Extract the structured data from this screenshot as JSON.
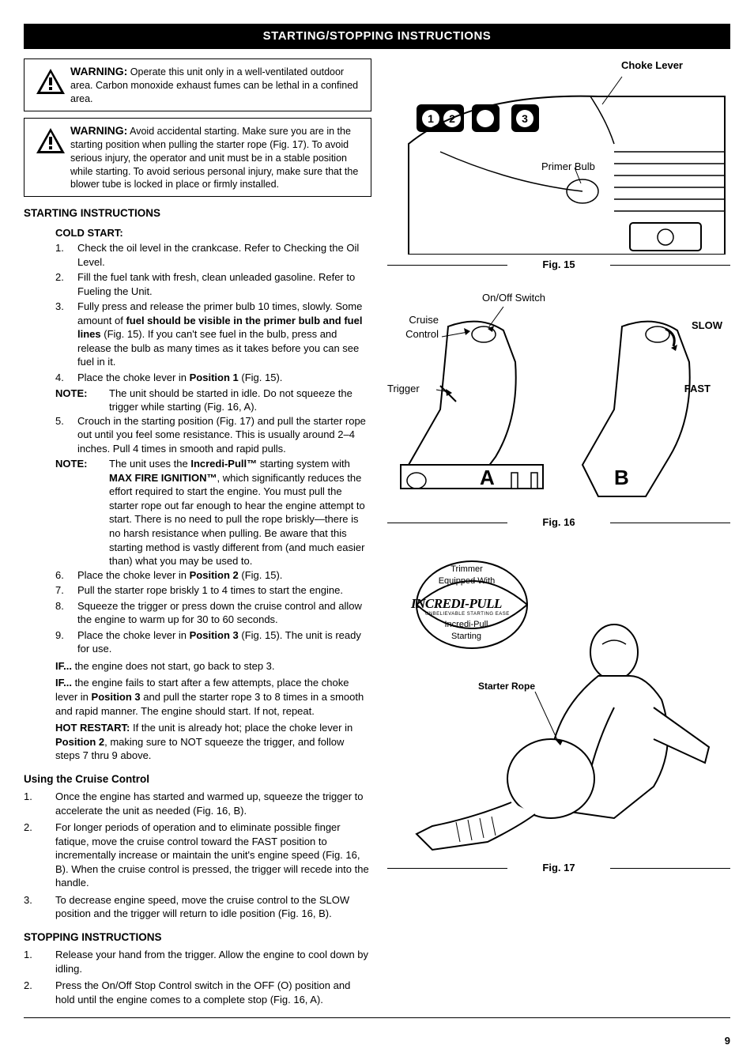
{
  "title_bar": "STARTING/STOPPING INSTRUCTIONS",
  "warnings": [
    {
      "label": "WARNING:",
      "text": " Operate this unit only in a well-ventilated outdoor area. Carbon monoxide exhaust fumes can be lethal in a confined area."
    },
    {
      "label": "WARNING:",
      "text": " Avoid accidental starting. Make sure you are in the starting position when pulling the starter rope (Fig. 17). To avoid serious injury, the operator and unit must be in a stable position while starting. To avoid serious personal injury, make sure that the blower tube is locked in place or firmly installed."
    }
  ],
  "starting_heading": "STARTING INSTRUCTIONS",
  "cold_start_heading": "COLD START:",
  "cold_start_steps": [
    {
      "n": "1.",
      "t": "Check the oil level in the crankcase.  Refer to Checking the Oil Level."
    },
    {
      "n": "2.",
      "t": "Fill the fuel tank with fresh, clean unleaded gasoline. Refer to Fueling the Unit."
    },
    {
      "n": "3.",
      "t": "Fully press and release the primer bulb 10 times, slowly. Some amount of <b>fuel should be visible in the primer bulb and fuel lines</b> (Fig. 15). If you can't see fuel in the bulb, press and release the bulb as many times as it takes before you can see fuel in it."
    },
    {
      "n": "4.",
      "t": "Place the choke lever in <b>Position 1</b> (Fig. 15)."
    }
  ],
  "note1_label": "NOTE:",
  "note1_text": "The unit should be started in idle.  Do not squeeze the trigger while starting (Fig. 16, A).",
  "step5": {
    "n": "5.",
    "t": "Crouch in the starting position (Fig. 17) and pull the starter rope out until you feel some resistance.  This is usually around 2–4 inches.  Pull 4 times in smooth and rapid pulls."
  },
  "note2_label": "NOTE:",
  "note2_text": "The unit uses the <b>Incredi-Pull™</b> starting system  with <b>MAX FIRE IGNITION™</b>, which significantly reduces the effort required to start the engine. You must pull the starter rope out far enough to hear the engine attempt to start. There is no need to pull the rope briskly—there is no harsh resistance when pulling. Be aware that this starting method is vastly different from (and much easier than) what you may be used to.",
  "cold_start_rest": [
    {
      "n": "6.",
      "t": "Place the choke lever in <b>Position 2</b> (Fig. 15)."
    },
    {
      "n": "7.",
      "t": "Pull the starter rope briskly 1 to 4 times to start the engine."
    },
    {
      "n": "8.",
      "t": "Squeeze the trigger or press down the cruise control and allow the engine to warm up for 30 to 60 seconds."
    },
    {
      "n": "9.",
      "t": "Place the choke lever in <b>Position 3</b> (Fig. 15).  The unit is ready for use."
    }
  ],
  "if1_label": "IF...",
  "if1_text": " the engine does not start, go back to step 3.",
  "if2_label": "IF...",
  "if2_text": " the engine fails to start after a few attempts, place the choke lever in <b>Position 3</b> and pull the starter rope 3 to 8 times in a smooth and rapid manner. The engine should start. If not, repeat.",
  "hot_label": "HOT RESTART:",
  "hot_text": "  If the unit is already hot; place the choke lever in <b>Position 2</b>, making sure to NOT squeeze the trigger, and follow steps 7 thru 9 above.",
  "cruise_heading": "Using the Cruise Control",
  "cruise_steps": [
    {
      "n": "1.",
      "t": "Once the engine has started and warmed up, squeeze the trigger to accelerate the unit as needed (Fig. 16, B)."
    },
    {
      "n": "2.",
      "t": "For longer periods of operation and to eliminate possible finger fatique, move the cruise control toward the FAST position to incrementally increase or maintain the unit's engine speed (Fig. 16, B).  When the cruise control is pressed, the trigger will recede into the handle."
    },
    {
      "n": "3.",
      "t": "To decrease engine speed, move the cruise control to the SLOW position and the trigger will return to idle position (Fig. 16, B)."
    }
  ],
  "stopping_heading": "STOPPING INSTRUCTIONS",
  "stopping_steps": [
    {
      "n": "1.",
      "t": "Release your hand from the trigger. Allow the engine to cool down by idling."
    },
    {
      "n": "2.",
      "t": "Press the On/Off Stop Control switch in the OFF (O) position and hold until the engine comes to a complete stop (Fig. 16, A)."
    }
  ],
  "fig15": {
    "choke_label": "Choke Lever",
    "primer_label": "Primer Bulb",
    "caption": "Fig. 15"
  },
  "fig16": {
    "onoff": "On/Off Switch",
    "cruise": "Cruise Control",
    "trigger": "Trigger",
    "slow": "SLOW",
    "fast": "FAST",
    "a": "A",
    "b": "B",
    "caption": "Fig. 16"
  },
  "fig17": {
    "trimmer": "Trimmer Equipped With",
    "brand": "INCREDI-PULL",
    "tag": "UNBELIEVABLE STARTING EASE",
    "incredi": "Incredi-Pull Starting",
    "starter": "Starter Rope",
    "caption": "Fig. 17"
  },
  "page_number": "9"
}
